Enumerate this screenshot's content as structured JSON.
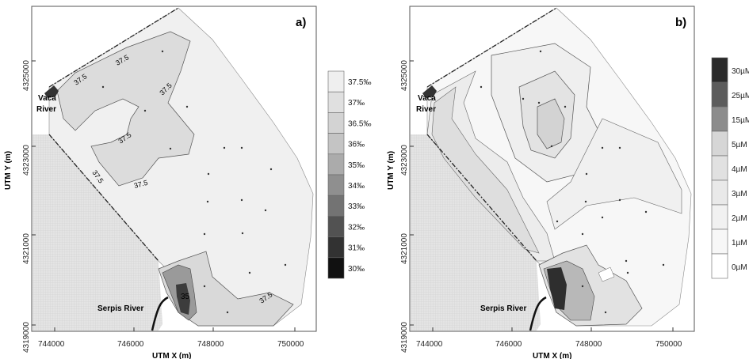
{
  "panels": [
    {
      "id": "a",
      "panel_label": "a)",
      "xaxis_label": "UTM X (m)",
      "yaxis_label": "UTM Y (m)",
      "xticks": [
        "744000",
        "746000",
        "748000",
        "750000"
      ],
      "yticks": [
        "4325000",
        "4323000",
        "4321000",
        "4319000"
      ],
      "river_labels": {
        "top_line1": "Vaca",
        "top_line2": "River",
        "bottom": "Serpis River"
      },
      "contour_labels": [
        "37.5",
        "37.5",
        "37.5",
        "37.5",
        "37.5",
        "37.5",
        "35",
        "37.5"
      ],
      "legend": [
        "37.5‰",
        "37‰",
        "36.5‰",
        "36‰",
        "35‰",
        "34‰",
        "33‰",
        "32‰",
        "31‰",
        "30‰"
      ],
      "legend_colors": [
        "#efefef",
        "#e0e0e0",
        "#d3d3d3",
        "#c4c4c4",
        "#ababab",
        "#8f8f8f",
        "#737373",
        "#525252",
        "#323232",
        "#111111"
      ]
    },
    {
      "id": "b",
      "panel_label": "b)",
      "xaxis_label": "UTM X (m)",
      "yaxis_label": "UTM Y (m)",
      "xticks": [
        "744000",
        "746000",
        "748000",
        "750000"
      ],
      "yticks": [
        "4325000",
        "4323000",
        "4321000",
        "4319000"
      ],
      "river_labels": {
        "top_line1": "Vaca",
        "top_line2": "River",
        "bottom": "Serpis River"
      },
      "legend": [
        "30µM",
        "25µM",
        "15µM",
        "5µM",
        "4µM",
        "3µM",
        "2µM",
        "1µM",
        "0µM"
      ],
      "legend_colors": [
        "#2a2a2a",
        "#5c5c5c",
        "#8c8c8c",
        "#d6d6d6",
        "#e1e1e1",
        "#e9e9e9",
        "#f1f1f1",
        "#f7f7f7",
        "#ffffff"
      ]
    }
  ]
}
